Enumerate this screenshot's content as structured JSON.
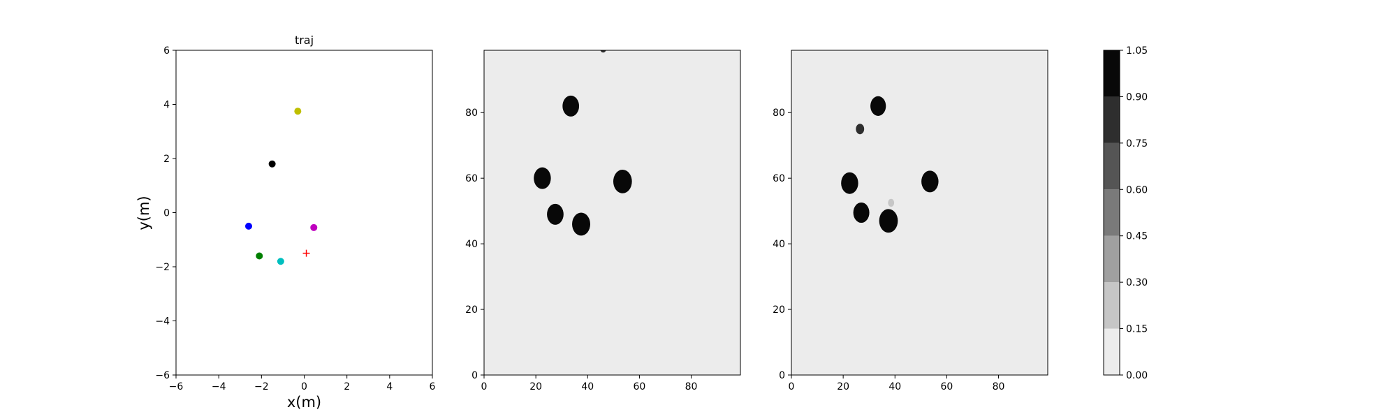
{
  "chart_data": [
    {
      "type": "scatter",
      "title": "traj",
      "xlabel": "x(m)",
      "ylabel": "y(m)",
      "xlim": [
        -6,
        6
      ],
      "ylim": [
        -6,
        6
      ],
      "xticks": [
        "−6",
        "−4",
        "−2",
        "0",
        "2",
        "4",
        "6"
      ],
      "yticks": [
        "−6",
        "−4",
        "−2",
        "0",
        "2",
        "4",
        "6"
      ],
      "grid": false,
      "points": [
        {
          "x": -0.3,
          "y": 3.75,
          "color": "#bfbf00",
          "marker": "circle"
        },
        {
          "x": -1.5,
          "y": 1.8,
          "color": "#000000",
          "marker": "circle"
        },
        {
          "x": -2.6,
          "y": -0.5,
          "color": "#0000ff",
          "marker": "circle"
        },
        {
          "x": 0.45,
          "y": -0.55,
          "color": "#bf00bf",
          "marker": "circle"
        },
        {
          "x": -2.1,
          "y": -1.6,
          "color": "#008000",
          "marker": "circle"
        },
        {
          "x": -1.1,
          "y": -1.8,
          "color": "#00bfbf",
          "marker": "circle"
        },
        {
          "x": 0.1,
          "y": -1.5,
          "color": "#ff0000",
          "marker": "plus"
        }
      ]
    },
    {
      "type": "heatmap",
      "xlim": [
        0,
        99
      ],
      "ylim": [
        0,
        99
      ],
      "xticks": [
        "0",
        "20",
        "40",
        "60",
        "80"
      ],
      "yticks": [
        "0",
        "20",
        "40",
        "60",
        "80"
      ],
      "background_level": 0.05,
      "blobs": [
        {
          "cx": 33.5,
          "cy": 82,
          "r": 3.2,
          "level": 1.0
        },
        {
          "cx": 22.5,
          "cy": 60,
          "r": 3.3,
          "level": 1.0
        },
        {
          "cx": 53.5,
          "cy": 59,
          "r": 3.6,
          "level": 1.0
        },
        {
          "cx": 27.5,
          "cy": 49,
          "r": 3.2,
          "level": 1.0
        },
        {
          "cx": 37.5,
          "cy": 46,
          "r": 3.5,
          "level": 1.0
        },
        {
          "cx": 46,
          "cy": 99.5,
          "r": 1.2,
          "level": 0.8
        }
      ]
    },
    {
      "type": "heatmap",
      "xlim": [
        0,
        99
      ],
      "ylim": [
        0,
        99
      ],
      "xticks": [
        "0",
        "20",
        "40",
        "60",
        "80"
      ],
      "yticks": [
        "0",
        "20",
        "40",
        "60",
        "80"
      ],
      "background_level": 0.05,
      "blobs": [
        {
          "cx": 33.5,
          "cy": 82,
          "r": 3.0,
          "level": 1.0
        },
        {
          "cx": 26.5,
          "cy": 75,
          "r": 1.6,
          "level": 0.85
        },
        {
          "cx": 22.5,
          "cy": 58.5,
          "r": 3.3,
          "level": 1.0
        },
        {
          "cx": 53.5,
          "cy": 59,
          "r": 3.3,
          "level": 1.0
        },
        {
          "cx": 27,
          "cy": 49.5,
          "r": 3.1,
          "level": 1.0
        },
        {
          "cx": 37.5,
          "cy": 47,
          "r": 3.6,
          "level": 1.0
        },
        {
          "cx": 38.5,
          "cy": 52.5,
          "r": 1.2,
          "level": 0.2
        }
      ]
    },
    {
      "type": "colorbar",
      "levels": [
        0.0,
        0.15,
        0.3,
        0.45,
        0.6,
        0.75,
        0.9,
        1.05
      ],
      "ticks": [
        "0.00",
        "0.15",
        "0.30",
        "0.45",
        "0.60",
        "0.75",
        "0.90",
        "1.05"
      ],
      "colors": [
        "#ececec",
        "#c6c6c6",
        "#a0a0a0",
        "#7a7a7a",
        "#555555",
        "#2e2e2e",
        "#080808"
      ]
    }
  ]
}
